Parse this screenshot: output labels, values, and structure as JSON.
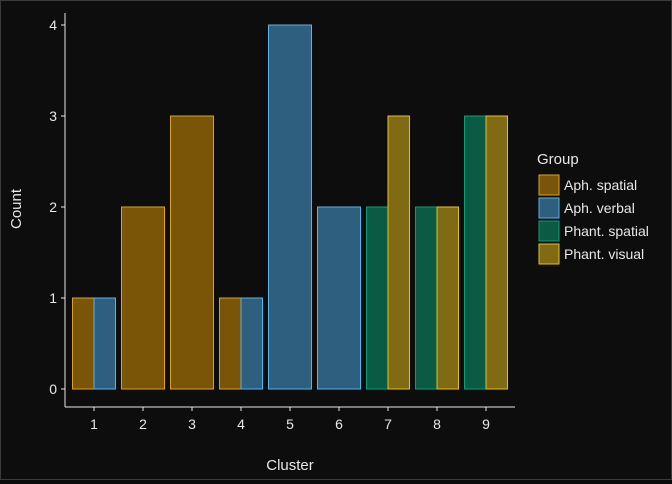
{
  "chart_data": {
    "type": "bar",
    "title": "",
    "xlabel": "Cluster",
    "ylabel": "Count",
    "categories": [
      "1",
      "2",
      "3",
      "4",
      "5",
      "6",
      "7",
      "8",
      "9"
    ],
    "ylim": [
      0,
      4
    ],
    "yticks": [
      "0",
      "1",
      "2",
      "3",
      "4"
    ],
    "grid": false,
    "legend": {
      "title": "Group",
      "position": "right"
    },
    "series": [
      {
        "name": "Aph. spatial",
        "color": "#7a5508",
        "stroke": "#d9a321",
        "values": [
          1,
          2,
          3,
          1,
          0,
          0,
          0,
          0,
          0
        ]
      },
      {
        "name": "Aph. verbal",
        "color": "#2f5f7e",
        "stroke": "#56b4e9",
        "values": [
          1,
          0,
          0,
          1,
          4,
          2,
          0,
          0,
          0
        ]
      },
      {
        "name": "Phant. spatial",
        "color": "#0a5a44",
        "stroke": "#0d9e70",
        "values": [
          0,
          0,
          0,
          0,
          0,
          0,
          2,
          2,
          3
        ]
      },
      {
        "name": "Phant. visual",
        "color": "#806a14",
        "stroke": "#e3c21e",
        "values": [
          0,
          0,
          0,
          0,
          0,
          0,
          3,
          2,
          3
        ]
      }
    ]
  }
}
